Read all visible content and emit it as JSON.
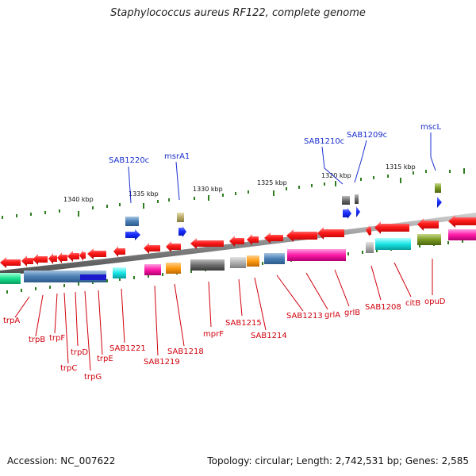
{
  "title": "Staphylococcus aureus RF122, complete genome",
  "footer": {
    "accession": "Accession: NC_007622",
    "stats": "Topology: circular; Length: 2,742,531 bp; Genes: 2,585"
  },
  "ruler_labels": [
    "1340 kbp",
    "1335 kbp",
    "1330 kbp",
    "1325 kbp",
    "1320 kbp",
    "1315 kbp"
  ],
  "upper_gene_labels": [
    "SAB1220c",
    "msrA1",
    "SAB1210c",
    "SAB1209c",
    "mscL"
  ],
  "lower_gene_labels": [
    "trpA",
    "trpB",
    "trpF",
    "trpC",
    "trpD",
    "trpG",
    "trpE",
    "SAB1221",
    "SAB1219",
    "SAB1218",
    "mprF",
    "SAB1215",
    "SAB1214",
    "SAB1213",
    "grlA",
    "grlB",
    "SAB1208",
    "citB",
    "opuD"
  ],
  "colors": {
    "forward_strand": "#1a2fd0",
    "reverse_strand": "#ff1a1a",
    "label_upper": "#1a2fd0",
    "label_lower": "#d0000c",
    "backbone": "#8a8a8a",
    "tick": "#2e7d1f"
  }
}
